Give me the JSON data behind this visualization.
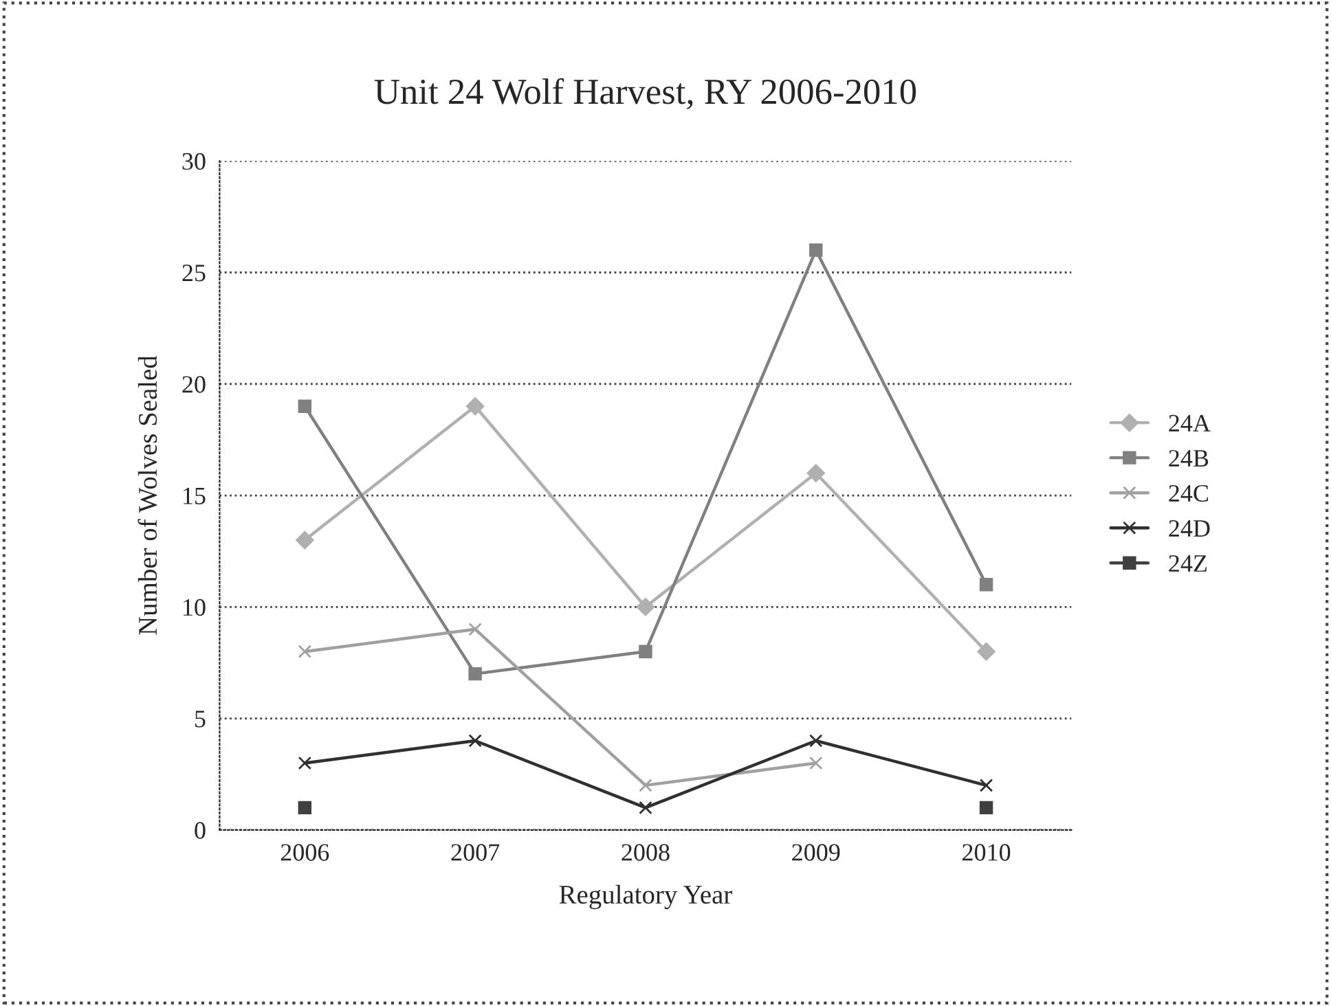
{
  "chart_data": {
    "type": "line",
    "title": "Unit 24 Wolf Harvest, RY 2006-2010",
    "xlabel": "Regulatory Year",
    "ylabel": "Number of Wolves Sealed",
    "categories": [
      "2006",
      "2007",
      "2008",
      "2009",
      "2010"
    ],
    "series": [
      {
        "name": "24A",
        "color": "#b0b0b0",
        "marker": "diamond",
        "values": [
          13,
          19,
          10,
          16,
          8
        ]
      },
      {
        "name": "24B",
        "color": "#808080",
        "marker": "square",
        "values": [
          19,
          7,
          8,
          26,
          11
        ]
      },
      {
        "name": "24C",
        "color": "#a0a0a0",
        "marker": "cross",
        "values": [
          8,
          9,
          2,
          3,
          null
        ]
      },
      {
        "name": "24D",
        "color": "#303030",
        "marker": "cross",
        "values": [
          3,
          4,
          1,
          4,
          2
        ]
      },
      {
        "name": "24Z",
        "color": "#404040",
        "marker": "square",
        "values": [
          1,
          null,
          null,
          null,
          1
        ]
      }
    ],
    "ylim": [
      0,
      30
    ],
    "yticks": [
      0,
      5,
      10,
      15,
      20,
      25,
      30
    ],
    "grid": "y",
    "legend": "right"
  }
}
